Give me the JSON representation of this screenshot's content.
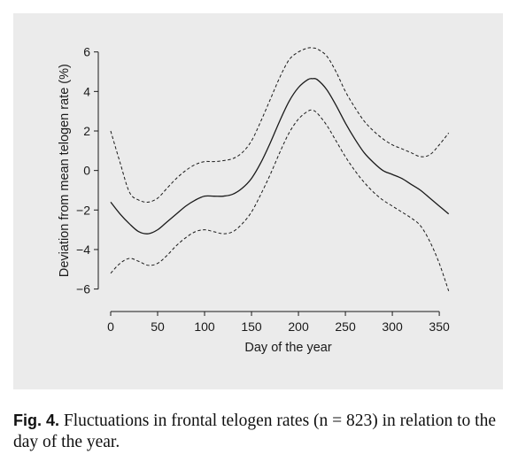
{
  "chart_data": {
    "type": "line",
    "xlabel": "Day of the year",
    "ylabel": "Deviation from mean telogen rate (%)",
    "xlim": [
      0,
      365
    ],
    "ylim": [
      -6.6,
      6.3
    ],
    "x_ticks": [
      0,
      50,
      100,
      150,
      200,
      250,
      300,
      350
    ],
    "y_ticks": [
      -6,
      -4,
      -2,
      0,
      2,
      4,
      6
    ],
    "grid": false,
    "series": [
      {
        "style": "solid",
        "x": [
          0,
          10,
          20,
          30,
          40,
          50,
          60,
          70,
          80,
          90,
          100,
          110,
          120,
          130,
          140,
          150,
          160,
          170,
          180,
          190,
          200,
          210,
          215,
          220,
          230,
          240,
          250,
          260,
          270,
          280,
          290,
          300,
          310,
          320,
          330,
          340,
          350,
          360
        ],
        "y": [
          -1.6,
          -2.2,
          -2.7,
          -3.1,
          -3.2,
          -3.0,
          -2.6,
          -2.2,
          -1.8,
          -1.5,
          -1.3,
          -1.3,
          -1.3,
          -1.2,
          -0.9,
          -0.4,
          0.4,
          1.4,
          2.5,
          3.5,
          4.2,
          4.6,
          4.65,
          4.6,
          4.1,
          3.3,
          2.4,
          1.6,
          0.9,
          0.4,
          0.0,
          -0.2,
          -0.4,
          -0.7,
          -1.0,
          -1.4,
          -1.8,
          -2.2
        ]
      },
      {
        "style": "dashed",
        "x": [
          0,
          10,
          20,
          30,
          40,
          50,
          60,
          70,
          80,
          90,
          100,
          110,
          120,
          130,
          140,
          150,
          160,
          170,
          180,
          190,
          200,
          210,
          215,
          220,
          230,
          240,
          250,
          260,
          270,
          280,
          290,
          300,
          310,
          320,
          330,
          340,
          350,
          360
        ],
        "y": [
          2.0,
          0.4,
          -1.1,
          -1.5,
          -1.6,
          -1.4,
          -0.9,
          -0.4,
          0.0,
          0.3,
          0.45,
          0.45,
          0.5,
          0.6,
          0.9,
          1.5,
          2.5,
          3.6,
          4.7,
          5.6,
          6.0,
          6.2,
          6.2,
          6.15,
          5.8,
          5.0,
          4.0,
          3.2,
          2.5,
          2.0,
          1.6,
          1.3,
          1.1,
          0.9,
          0.7,
          0.8,
          1.3,
          1.9
        ]
      },
      {
        "style": "dashed",
        "x": [
          0,
          10,
          20,
          30,
          40,
          50,
          60,
          70,
          80,
          90,
          100,
          110,
          120,
          130,
          140,
          150,
          160,
          170,
          180,
          190,
          200,
          210,
          215,
          220,
          230,
          240,
          250,
          260,
          270,
          280,
          290,
          300,
          310,
          320,
          330,
          340,
          350,
          360
        ],
        "y": [
          -5.2,
          -4.7,
          -4.45,
          -4.6,
          -4.8,
          -4.7,
          -4.3,
          -3.8,
          -3.4,
          -3.1,
          -3.0,
          -3.1,
          -3.2,
          -3.1,
          -2.7,
          -2.1,
          -1.2,
          -0.2,
          0.9,
          1.9,
          2.6,
          3.0,
          3.05,
          2.9,
          2.3,
          1.5,
          0.7,
          0.0,
          -0.6,
          -1.1,
          -1.5,
          -1.8,
          -2.1,
          -2.4,
          -2.8,
          -3.6,
          -4.7,
          -6.1
        ]
      }
    ]
  },
  "caption": {
    "label": "Fig. 4.",
    "text": " Fluctuations in frontal telogen rates (n = 823) in relation to the day of the year."
  }
}
